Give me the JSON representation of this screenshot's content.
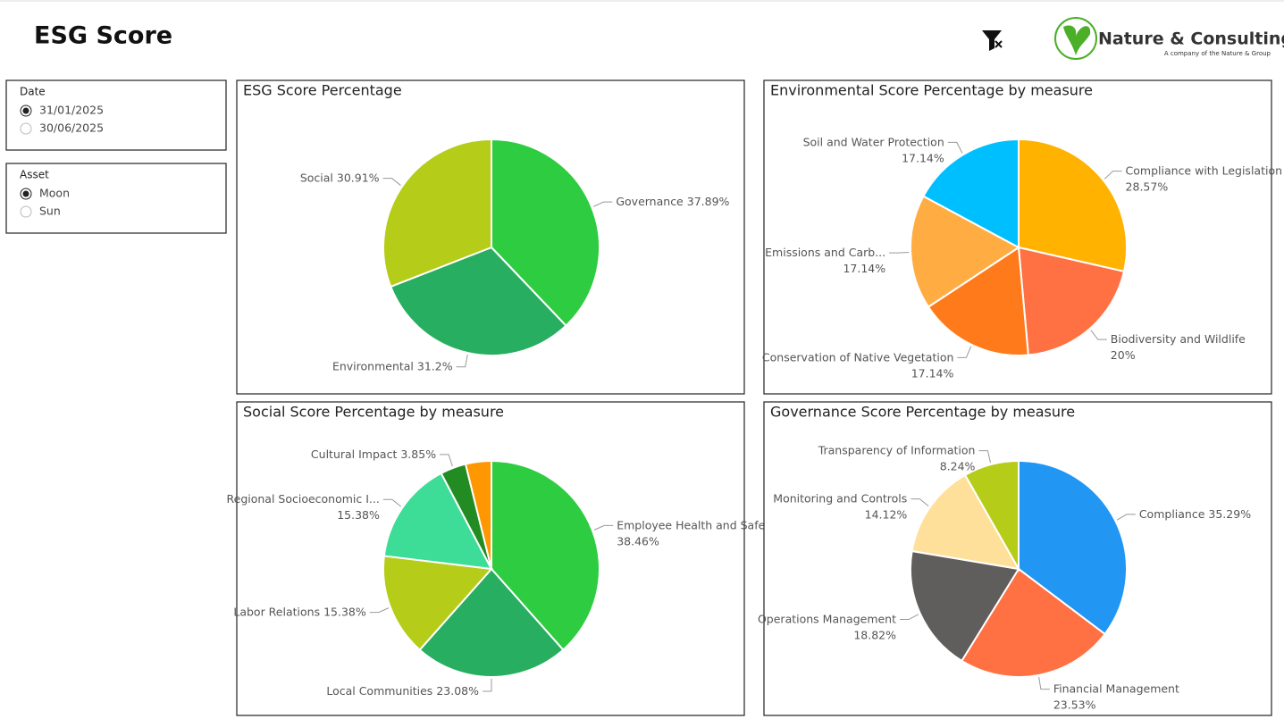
{
  "header": {
    "title": "ESG Score",
    "logo": "Nature & Consulting",
    "logo_sub": "A company of the Nature & Group"
  },
  "slicers": [
    {
      "title": "Date",
      "options": [
        "31/01/2025",
        "30/06/2025"
      ],
      "selected": 0
    },
    {
      "title": "Asset",
      "options": [
        "Moon",
        "Sun"
      ],
      "selected": 0
    }
  ],
  "chart_data": [
    {
      "type": "pie",
      "title": "ESG Score Percentage",
      "categories": [
        "Governance",
        "Environmental",
        "Social"
      ],
      "values": [
        37.89,
        31.2,
        30.91
      ],
      "value_labels": [
        "37.89%",
        "31.2%",
        "30.91%"
      ],
      "colors": [
        "#2ecc40",
        "#27ae60",
        "#b5cc18"
      ]
    },
    {
      "type": "pie",
      "title": "Environmental Score Percentage by measure",
      "categories": [
        "Compliance with Legislation",
        "Biodiversity and Wildlife",
        "Conservation of Native Vegetation",
        "Emissions and Carb...",
        "Soil and Water Protection"
      ],
      "values": [
        28.57,
        20,
        17.14,
        17.14,
        17.14
      ],
      "value_labels": [
        "28.57%",
        "20%",
        "17.14%",
        "17.14%",
        "17.14%"
      ],
      "colors": [
        "#ffb300",
        "#ff7043",
        "#ff7a1a",
        "#ffad42",
        "#00bfff"
      ]
    },
    {
      "type": "pie",
      "title": "Social Score Percentage by measure",
      "categories": [
        "Employee Health and Safety",
        "Local Communities",
        "Labor Relations",
        "Regional Socioeconomic I...",
        "Cultural Impact",
        null
      ],
      "values": [
        38.46,
        23.08,
        15.38,
        15.38,
        3.85,
        3.85
      ],
      "value_labels": [
        "38.46%",
        "23.08%",
        "15.38%",
        "15.38%",
        "3.85%",
        null
      ],
      "colors": [
        "#2ecc40",
        "#27ae60",
        "#b5cc18",
        "#3ddc97",
        "#228b22",
        "#ff9800"
      ]
    },
    {
      "type": "pie",
      "title": "Governance Score Percentage by measure",
      "categories": [
        "Compliance",
        "Financial Management",
        "Operations Management",
        "Monitoring and Controls",
        "Transparency of Information"
      ],
      "values": [
        35.29,
        23.53,
        18.82,
        14.12,
        8.24
      ],
      "value_labels": [
        "35.29%",
        "23.53%",
        "18.82%",
        "14.12%",
        "8.24%"
      ],
      "colors": [
        "#2196f3",
        "#ff7043",
        "#605e5c",
        "#ffe09a",
        "#b5cc18"
      ]
    }
  ]
}
